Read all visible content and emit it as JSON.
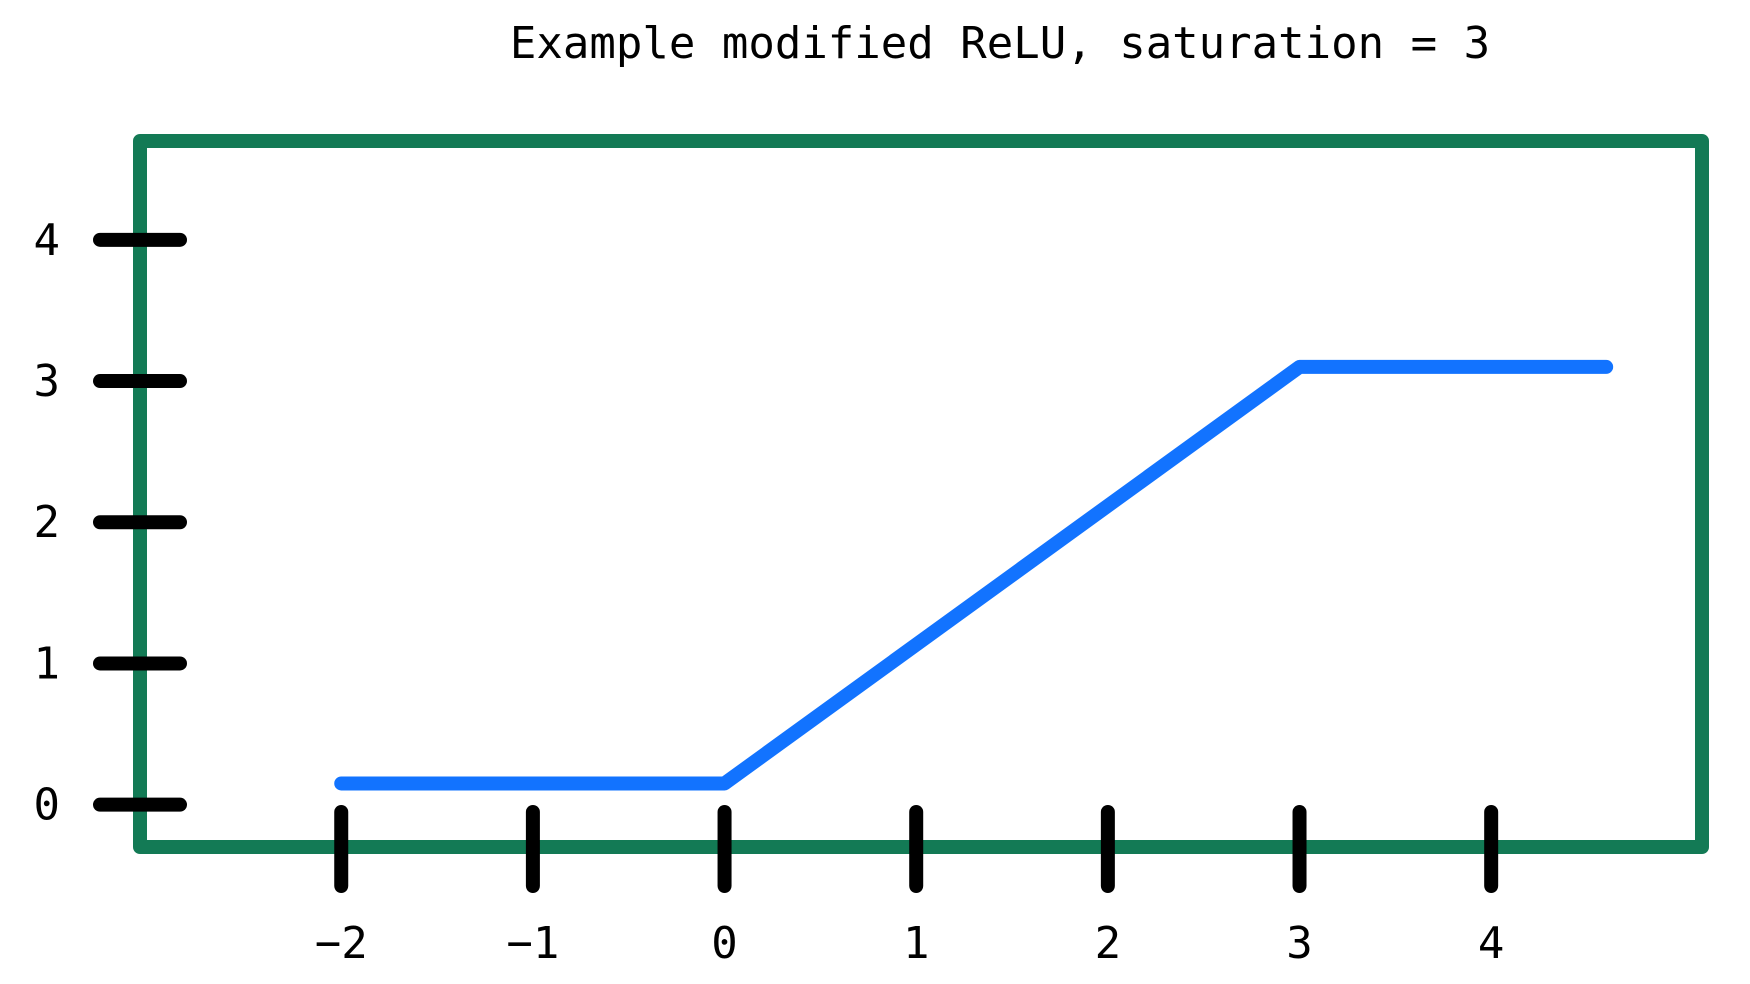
{
  "chart_data": {
    "type": "line",
    "title": "Example modified ReLU, saturation = 3",
    "xlabel": "",
    "ylabel": "",
    "x_ticks": [
      {
        "value": -2,
        "label": "−2"
      },
      {
        "value": -1,
        "label": "−1"
      },
      {
        "value": 0,
        "label": "0"
      },
      {
        "value": 1,
        "label": "1"
      },
      {
        "value": 2,
        "label": "2"
      },
      {
        "value": 3,
        "label": "3"
      },
      {
        "value": 4,
        "label": "4"
      }
    ],
    "y_ticks": [
      {
        "value": 0,
        "label": "0"
      },
      {
        "value": 1,
        "label": "1"
      },
      {
        "value": 2,
        "label": "2"
      },
      {
        "value": 3,
        "label": "3"
      },
      {
        "value": 4,
        "label": "4"
      }
    ],
    "xlim": [
      -3.05,
      5.1
    ],
    "ylim": [
      -0.3,
      4.7
    ],
    "grid": false,
    "legend": "none",
    "series": [
      {
        "color": "#1273ff",
        "x": [
          -2,
          0,
          3,
          4.6
        ],
        "y": [
          0.15,
          0.15,
          3.1,
          3.1
        ]
      }
    ],
    "colors": {
      "frame": "#137a55",
      "ticks": "#000000",
      "line": "#1273ff"
    }
  }
}
